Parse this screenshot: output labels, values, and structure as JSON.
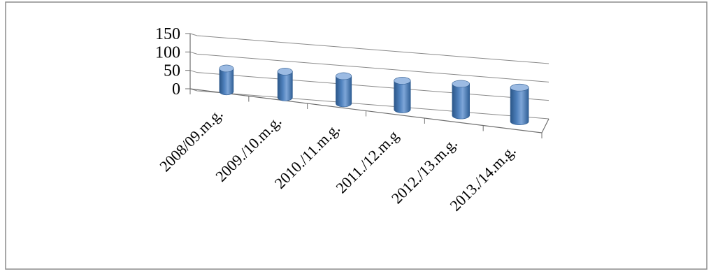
{
  "chart_data": {
    "type": "bar",
    "style": "3d-cylinder",
    "title": "",
    "xlabel": "",
    "ylabel": "",
    "categories": [
      "2008/09.m.g.",
      "2009./10.m.g.",
      "2010./11.m.g.",
      "2011./12.m.g",
      "2012./13.m.g.",
      "2013./14.m.g."
    ],
    "series": [
      {
        "values": [
          80,
          90,
          95,
          100,
          110,
          118
        ]
      }
    ],
    "ylim": [
      0,
      150
    ],
    "yticks": [
      "0",
      "50",
      "100",
      "150"
    ],
    "grid": true,
    "legend": "none",
    "colors": {
      "bar": "#4f81bd",
      "bar_dark": "#2e5a8e",
      "bar_light": "#9cbbe3"
    }
  }
}
